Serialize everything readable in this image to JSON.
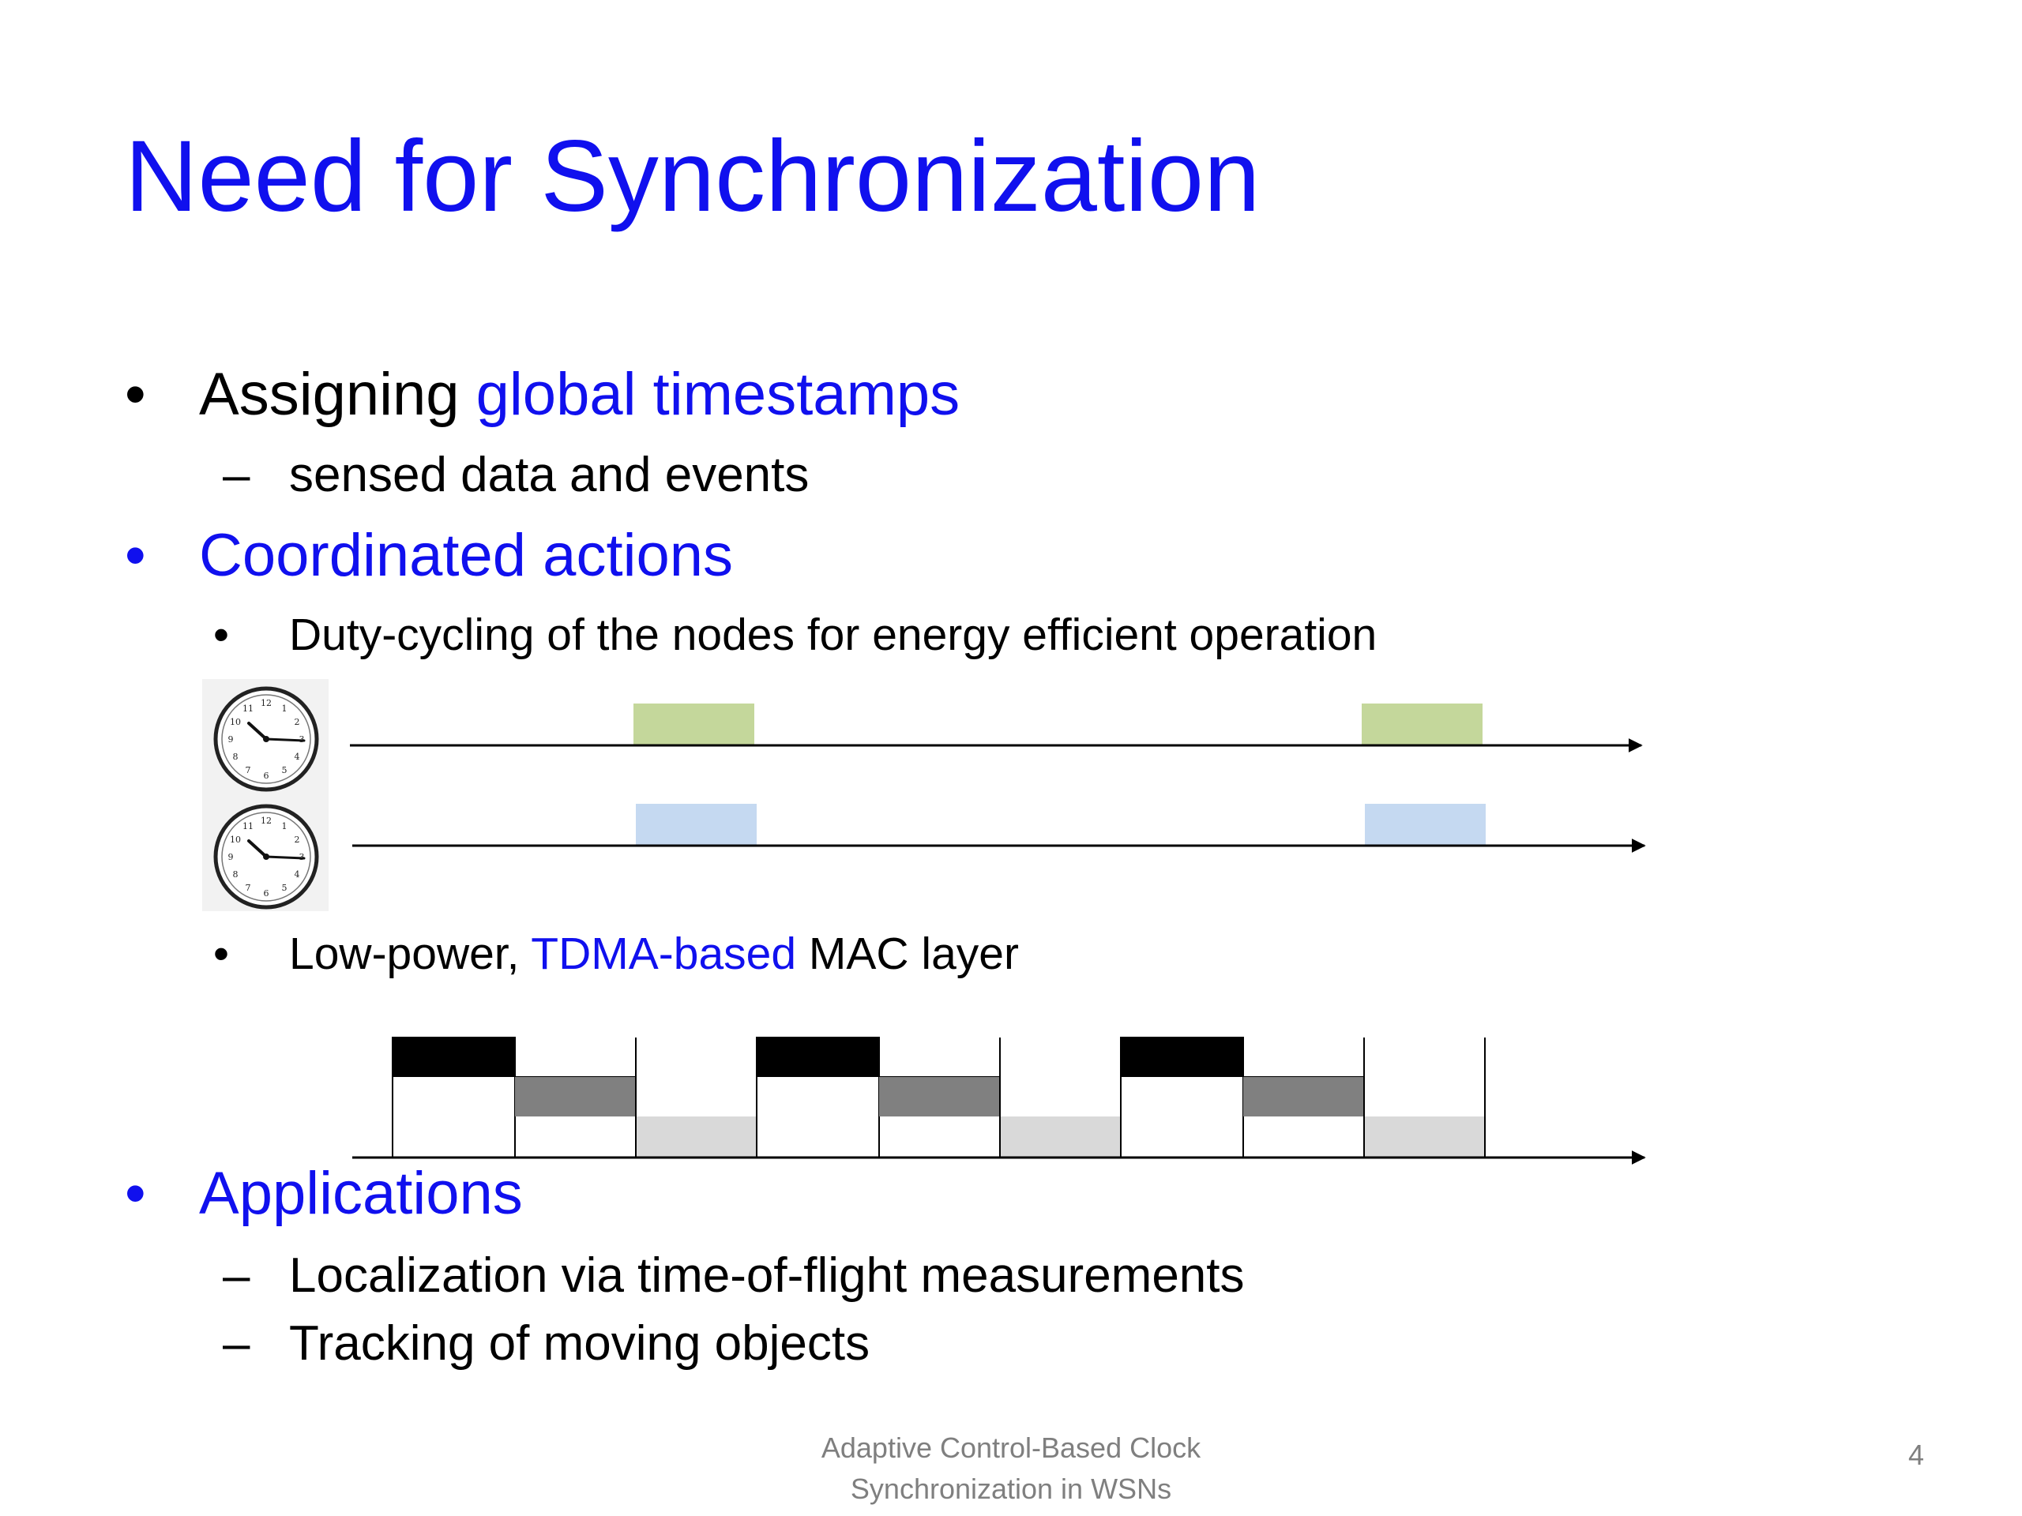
{
  "slide": {
    "title": "Need for Synchronization",
    "items": [
      {
        "bullet": "•",
        "text_a": "Assigning ",
        "text_b": "global timestamps"
      },
      {
        "bullet": "–",
        "text": "sensed data and events"
      },
      {
        "bullet": "•",
        "text": "Coordinated actions"
      },
      {
        "bullet": "•",
        "text": "Duty-cycling of the nodes for energy efficient operation"
      },
      {
        "bullet": "•",
        "text_a": "Low-power, ",
        "text_b": "TDMA-based",
        "text_c": " MAC layer"
      },
      {
        "bullet": "•",
        "text": "Applications"
      },
      {
        "bullet": "–",
        "text": "Localization via time-of-flight measurements"
      },
      {
        "bullet": "–",
        "text": "Tracking of moving objects"
      }
    ],
    "footer_line1": "Adaptive Control-Based Clock",
    "footer_line2": "Synchronization in WSNs",
    "page_number": "4"
  },
  "colors": {
    "title": "#1010ee",
    "highlight": "#1010ee",
    "duty_green": "#c4d79b",
    "duty_blue": "#c5d9f1",
    "slot_black": "#000000",
    "slot_dark_gray": "#808080",
    "slot_light_gray": "#d9d9d9"
  },
  "diagram": {
    "duty_cycle_clocks": [
      "clock-icon",
      "clock-icon"
    ],
    "tdma_slot_pattern": [
      "black",
      "dark-gray",
      "light-gray"
    ],
    "tdma_frames": 3
  }
}
